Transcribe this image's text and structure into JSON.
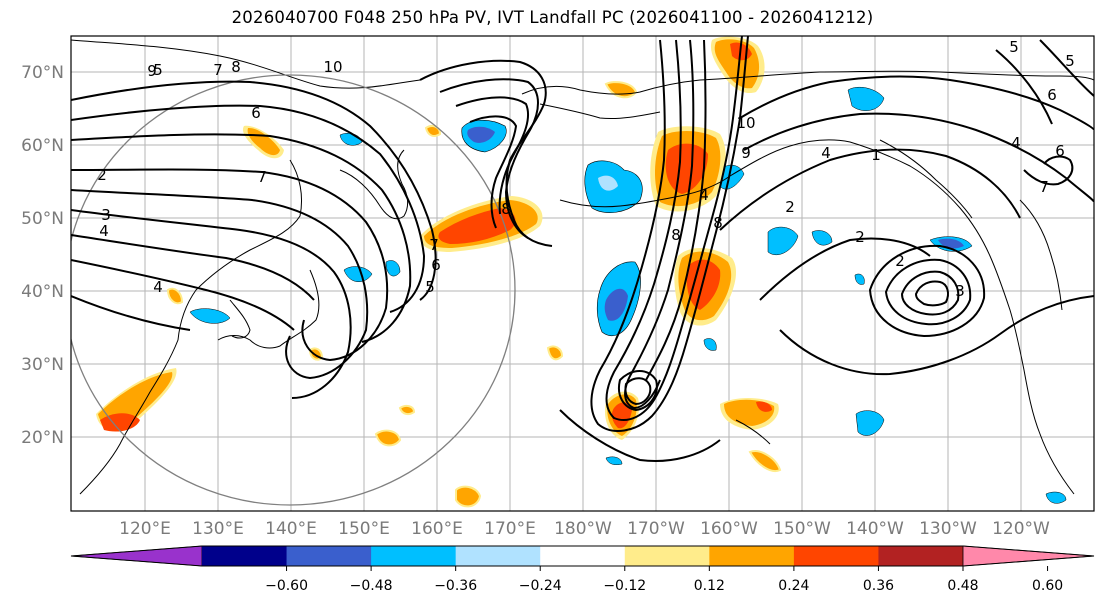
{
  "title": "2026040700 F048 250 hPa PV, IVT Landfall PC (2026041100 - 2026041212)",
  "lat_labels": [
    "70°N",
    "60°N",
    "50°N",
    "40°N",
    "30°N",
    "20°N"
  ],
  "lon_labels": [
    "120°E",
    "130°E",
    "140°E",
    "150°E",
    "160°E",
    "170°E",
    "180°W",
    "170°W",
    "160°W",
    "150°W",
    "140°W",
    "130°W",
    "120°W"
  ],
  "colorbar": {
    "ticks": [
      "−0.60",
      "−0.48",
      "−0.36",
      "−0.24",
      "−0.12",
      "0.12",
      "0.24",
      "0.36",
      "0.48",
      "0.60"
    ],
    "colors": [
      "#9932cc",
      "#00008b",
      "#3a5fcd",
      "#00bfff",
      "#b0e2ff",
      "#ffffff",
      "#ffec8b",
      "#ffa500",
      "#ff4500",
      "#b22222",
      "#ff88aa"
    ]
  },
  "contour_labels": [
    "5",
    "7",
    "8",
    "9",
    "10",
    "6",
    "7",
    "4",
    "3",
    "2",
    "4",
    "5",
    "6",
    "7",
    "8",
    "10",
    "9",
    "8",
    "2",
    "4",
    "2",
    "1",
    "3",
    "2",
    "5",
    "6",
    "7",
    "8",
    "4",
    "5",
    "6",
    "4"
  ]
}
